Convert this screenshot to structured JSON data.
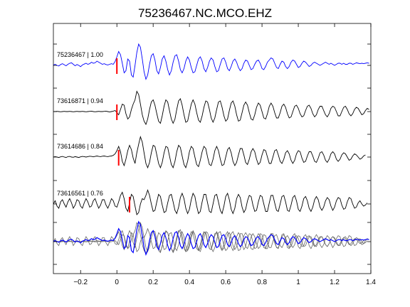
{
  "chart_data": {
    "type": "line",
    "title": "75236467.NC.MCO.EHZ",
    "xlabel": "",
    "ylabel": "",
    "xlim": [
      -0.35,
      1.4
    ],
    "x_ticks": [
      -0.2,
      0,
      0.2,
      0.4,
      0.6,
      0.8,
      1,
      1.2,
      1.4
    ],
    "x_tick_labels": [
      "−0.2",
      "0",
      "0.2",
      "0.4",
      "0.6",
      "0.8",
      "1",
      "1.2",
      "1.4"
    ],
    "grid": false,
    "legend": "none",
    "sample_interval": 0.01,
    "traces": [
      {
        "label": "75236467 | 1.00",
        "color": "#0000ff",
        "pick_time": 0.0,
        "pick_color": "#ff0000",
        "values": [
          0.02,
          0.05,
          0.0,
          -0.03,
          0.04,
          0.08,
          0.03,
          -0.02,
          0.05,
          0.1,
          0.12,
          0.05,
          -0.02,
          0.04,
          0.0,
          -0.06,
          0.02,
          0.06,
          0.1,
          0.05,
          0.08,
          0.15,
          0.1,
          0.12,
          0.2,
          0.15,
          0.1,
          0.05,
          0.08,
          0.04,
          0.02,
          0.05,
          0.08,
          0.05,
          0.18,
          0.4,
          0.65,
          0.5,
          0.1,
          -0.35,
          -0.25,
          0.3,
          0.2,
          -0.45,
          -0.55,
          0.0,
          0.6,
          1.0,
          0.85,
          0.3,
          -0.3,
          -0.65,
          -0.45,
          0.05,
          0.45,
          0.55,
          0.25,
          -0.25,
          -0.4,
          -0.1,
          0.3,
          0.45,
          0.2,
          -0.2,
          -0.45,
          -0.25,
          0.15,
          0.45,
          0.5,
          0.2,
          -0.2,
          -0.35,
          -0.15,
          0.2,
          0.4,
          0.25,
          -0.1,
          -0.35,
          -0.3,
          0.0,
          0.3,
          0.4,
          0.2,
          -0.15,
          -0.3,
          -0.1,
          0.2,
          0.35,
          0.25,
          -0.05,
          -0.3,
          -0.25,
          0.05,
          0.3,
          0.35,
          0.15,
          -0.15,
          -0.25,
          -0.05,
          0.2,
          0.3,
          0.15,
          -0.1,
          -0.25,
          -0.15,
          0.1,
          0.25,
          0.2,
          0.0,
          -0.2,
          -0.15,
          0.05,
          0.2,
          0.25,
          0.1,
          -0.15,
          -0.2,
          -0.05,
          0.15,
          0.25,
          0.35,
          0.3,
          0.1,
          -0.1,
          -0.15,
          0.05,
          0.2,
          0.15,
          -0.05,
          -0.15,
          -0.05,
          0.15,
          0.25,
          0.2,
          0.05,
          -0.1,
          -0.05,
          0.1,
          0.2,
          0.15,
          0.05,
          -0.05,
          0.0,
          0.1,
          0.15,
          0.1,
          0.05,
          0.0,
          0.05,
          0.1,
          0.15,
          0.1,
          0.05,
          0.1,
          0.05,
          0.0,
          0.05,
          0.1,
          0.1,
          0.05,
          0.1,
          0.05,
          0.05,
          0.1,
          0.1,
          0.05,
          0.08,
          0.12,
          0.1,
          0.08,
          0.1,
          0.08,
          0.1,
          0.12,
          0.1
        ]
      },
      {
        "label": "73616871 | 0.94",
        "color": "#000000",
        "pick_time": 0.0,
        "pick_color": "#ff0000",
        "values": [
          0.0,
          0.0,
          0.01,
          0.0,
          -0.01,
          0.0,
          0.01,
          0.0,
          0.0,
          0.01,
          0.0,
          -0.01,
          0.0,
          0.01,
          0.0,
          0.0,
          0.01,
          0.0,
          -0.01,
          0.0,
          0.01,
          0.02,
          0.0,
          -0.01,
          0.0,
          0.01,
          0.0,
          0.0,
          0.01,
          0.02,
          0.0,
          -0.02,
          0.0,
          0.02,
          0.05,
          -0.05,
          -0.15,
          0.1,
          0.35,
          0.3,
          -0.1,
          -0.35,
          -0.25,
          0.1,
          0.35,
          0.55,
          0.95,
          0.8,
          0.35,
          -0.15,
          -0.45,
          -0.6,
          -0.35,
          0.1,
          0.45,
          0.55,
          0.3,
          -0.1,
          -0.45,
          -0.55,
          -0.2,
          0.25,
          0.55,
          0.45,
          0.05,
          -0.35,
          -0.55,
          -0.35,
          0.1,
          0.5,
          0.6,
          0.3,
          -0.15,
          -0.5,
          -0.45,
          -0.05,
          0.35,
          0.55,
          0.35,
          -0.05,
          -0.4,
          -0.5,
          -0.2,
          0.2,
          0.5,
          0.45,
          0.1,
          -0.3,
          -0.5,
          -0.3,
          0.1,
          0.45,
          0.5,
          0.2,
          -0.2,
          -0.45,
          -0.35,
          0.05,
          0.4,
          0.5,
          0.25,
          -0.15,
          -0.45,
          -0.4,
          -0.05,
          0.3,
          0.45,
          0.3,
          -0.05,
          -0.35,
          -0.4,
          -0.15,
          0.2,
          0.4,
          0.3,
          0.0,
          -0.3,
          -0.35,
          -0.1,
          0.25,
          0.4,
          0.25,
          -0.05,
          -0.3,
          -0.3,
          -0.05,
          0.25,
          0.35,
          0.2,
          -0.1,
          -0.3,
          -0.25,
          0.0,
          0.25,
          0.3,
          0.15,
          -0.1,
          -0.25,
          -0.2,
          0.05,
          0.25,
          0.3,
          0.15,
          -0.1,
          -0.25,
          -0.15,
          0.1,
          0.25,
          0.25,
          0.05,
          -0.15,
          -0.25,
          -0.1,
          0.15,
          0.25,
          0.2,
          0.0,
          -0.2,
          -0.2,
          0.0,
          0.2,
          0.25,
          0.1,
          -0.1,
          -0.2,
          -0.1,
          0.1,
          0.2,
          0.15,
          0.0,
          -0.15,
          -0.1,
          0.05,
          0.15,
          0.1
        ]
      },
      {
        "label": "73614686 | 0.84",
        "color": "#000000",
        "pick_time": 0.01,
        "pick_color": "#ff0000",
        "values": [
          0.0,
          0.02,
          0.0,
          -0.02,
          0.01,
          0.03,
          0.0,
          -0.02,
          0.02,
          0.03,
          0.0,
          -0.01,
          0.02,
          0.0,
          -0.02,
          0.01,
          0.03,
          0.02,
          0.0,
          0.02,
          0.04,
          0.03,
          0.01,
          0.03,
          0.05,
          0.03,
          0.02,
          0.04,
          0.05,
          0.03,
          0.02,
          0.04,
          0.05,
          0.08,
          0.15,
          0.3,
          0.5,
          0.25,
          -0.2,
          -0.4,
          -0.1,
          0.3,
          0.55,
          0.35,
          -0.05,
          -0.3,
          0.2,
          0.6,
          0.95,
          0.7,
          0.2,
          -0.3,
          -0.5,
          -0.25,
          0.2,
          0.55,
          0.5,
          0.1,
          -0.3,
          -0.5,
          -0.25,
          0.2,
          0.5,
          0.45,
          0.05,
          -0.35,
          -0.5,
          -0.2,
          0.25,
          0.55,
          0.45,
          0.05,
          -0.35,
          -0.5,
          -0.2,
          0.25,
          0.5,
          0.4,
          0.0,
          -0.35,
          -0.45,
          -0.15,
          0.25,
          0.5,
          0.4,
          0.0,
          -0.35,
          -0.4,
          -0.1,
          0.3,
          0.5,
          0.3,
          -0.1,
          -0.4,
          -0.35,
          0.0,
          0.35,
          0.45,
          0.2,
          -0.2,
          -0.4,
          -0.25,
          0.1,
          0.4,
          0.4,
          0.1,
          -0.25,
          -0.35,
          -0.1,
          0.25,
          0.4,
          0.25,
          -0.1,
          -0.35,
          -0.25,
          0.1,
          0.35,
          0.3,
          0.0,
          -0.3,
          -0.3,
          0.0,
          0.3,
          0.35,
          0.1,
          -0.2,
          -0.3,
          -0.1,
          0.2,
          0.3,
          0.15,
          -0.15,
          -0.3,
          -0.15,
          0.15,
          0.3,
          0.25,
          -0.05,
          -0.25,
          -0.2,
          0.05,
          0.25,
          0.25,
          0.05,
          -0.2,
          -0.25,
          -0.05,
          0.2,
          0.25,
          0.1,
          -0.15,
          -0.25,
          -0.1,
          0.15,
          0.25,
          0.15,
          -0.1,
          -0.2,
          -0.1,
          0.1,
          0.2,
          0.15,
          0.0,
          -0.15,
          -0.1,
          0.05,
          0.15,
          0.1,
          0.0,
          -0.1,
          -0.05,
          0.05,
          0.1
        ]
      },
      {
        "label": "73616561 | 0.76",
        "color": "#000000",
        "pick_time": 0.07,
        "pick_color": "#ff0000",
        "values": [
          0.0,
          0.15,
          -0.1,
          -0.2,
          0.1,
          0.2,
          0.0,
          -0.15,
          0.1,
          0.25,
          0.05,
          -0.2,
          -0.05,
          0.2,
          0.15,
          -0.1,
          -0.2,
          0.05,
          0.25,
          0.1,
          -0.15,
          -0.1,
          0.15,
          0.25,
          0.0,
          -0.2,
          -0.05,
          0.2,
          0.2,
          -0.05,
          -0.2,
          0.0,
          0.25,
          0.15,
          -0.1,
          -0.15,
          0.1,
          0.4,
          0.55,
          0.25,
          -0.2,
          -0.35,
          0.05,
          0.45,
          0.35,
          -0.1,
          -0.5,
          -0.4,
          0.0,
          0.25,
          0.2,
          0.4,
          0.65,
          0.4,
          0.0,
          -0.35,
          -0.3,
          0.1,
          0.45,
          0.35,
          -0.05,
          -0.4,
          -0.35,
          0.05,
          0.4,
          0.45,
          0.1,
          -0.3,
          -0.45,
          -0.15,
          0.3,
          0.5,
          0.25,
          -0.2,
          -0.45,
          -0.25,
          0.2,
          0.5,
          0.35,
          -0.1,
          -0.45,
          -0.35,
          0.1,
          0.45,
          0.45,
          0.05,
          -0.35,
          -0.4,
          0.0,
          0.4,
          0.45,
          0.1,
          -0.3,
          -0.45,
          -0.1,
          0.35,
          0.5,
          0.2,
          -0.25,
          -0.45,
          -0.2,
          0.25,
          0.45,
          0.3,
          -0.15,
          -0.4,
          -0.25,
          0.15,
          0.4,
          0.35,
          -0.05,
          -0.35,
          -0.3,
          0.1,
          0.4,
          0.35,
          0.0,
          -0.35,
          -0.35,
          0.05,
          0.4,
          0.4,
          0.05,
          -0.3,
          -0.35,
          0.0,
          0.35,
          0.4,
          0.1,
          -0.3,
          -0.35,
          -0.05,
          0.3,
          0.4,
          0.15,
          -0.25,
          -0.35,
          -0.1,
          0.25,
          0.35,
          0.15,
          -0.2,
          -0.35,
          -0.15,
          0.2,
          0.35,
          0.2,
          -0.15,
          -0.3,
          -0.15,
          0.15,
          0.3,
          0.2,
          -0.1,
          -0.3,
          -0.15,
          0.15,
          0.3,
          0.25,
          -0.05,
          -0.25,
          -0.2,
          0.1,
          0.3,
          0.25,
          0.0,
          -0.2,
          -0.15,
          0.05,
          0.15,
          0.0,
          -0.1,
          -0.05,
          0.05
        ]
      }
    ],
    "overlay_colors": {
      "stack": "#0000ff",
      "others": "#666666"
    }
  }
}
